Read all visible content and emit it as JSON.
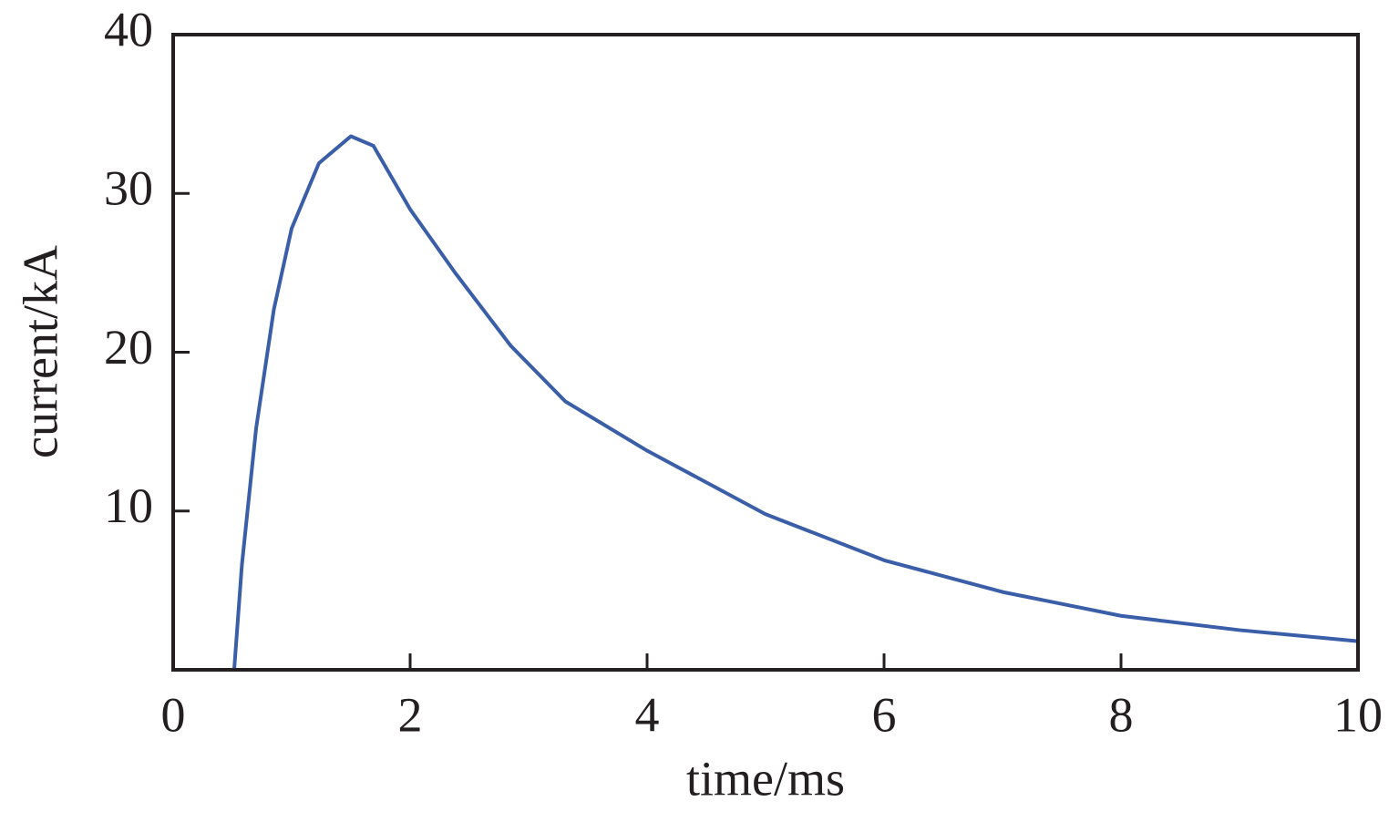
{
  "chart_data": {
    "type": "line",
    "xlabel": "time/ms",
    "ylabel": "current/kA",
    "x": [
      0,
      0.515,
      0.58,
      0.7,
      0.85,
      1.0,
      1.23,
      1.5,
      1.69,
      2.0,
      2.38,
      2.85,
      3.31,
      4.0,
      5.0,
      6.0,
      7.0,
      8.0,
      9.0,
      10.0
    ],
    "series": [
      {
        "color": "#3a5ea8",
        "values": [
          0,
          0,
          6.6,
          15.2,
          22.7,
          27.8,
          31.9,
          33.6,
          33.0,
          29.0,
          25.0,
          20.4,
          16.9,
          13.8,
          9.8,
          6.9,
          4.9,
          3.4,
          2.5,
          1.8
        ]
      }
    ],
    "xlim": [
      0,
      10
    ],
    "xticks": [
      0,
      2,
      4,
      6,
      8,
      10
    ],
    "ylim": [
      0,
      40
    ],
    "yticks": [
      10,
      20,
      30,
      40
    ]
  }
}
